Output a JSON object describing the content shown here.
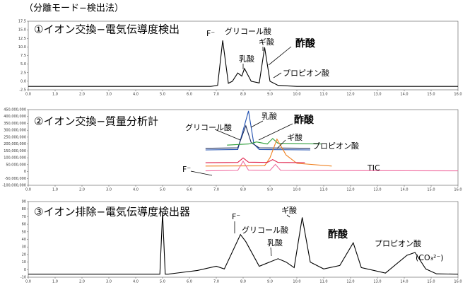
{
  "title": "（分離モード−検出法）",
  "chart_data": [
    {
      "type": "line",
      "title": "①イオン交換−電気伝導度検出",
      "xlim": [
        0,
        16
      ],
      "ylim": [
        -2.5,
        17.5
      ],
      "xticks": [
        {
          "value": 0,
          "label": "0.0"
        },
        {
          "value": 1,
          "label": "1.0"
        },
        {
          "value": 2,
          "label": "2.0"
        },
        {
          "value": 3,
          "label": "3.0"
        },
        {
          "value": 4,
          "label": "4.0"
        },
        {
          "value": 5,
          "label": "5.0"
        },
        {
          "value": 6,
          "label": "6.0"
        },
        {
          "value": 7,
          "label": "7.0"
        },
        {
          "value": 8,
          "label": "8.0"
        },
        {
          "value": 9,
          "label": "9.0"
        },
        {
          "value": 10,
          "label": "10.0"
        },
        {
          "value": 11,
          "label": "11.0"
        },
        {
          "value": 12,
          "label": "12.0"
        },
        {
          "value": 13,
          "label": "13.0"
        },
        {
          "value": 14,
          "label": "14.0"
        },
        {
          "value": 15,
          "label": "15.0"
        },
        {
          "value": 16,
          "label": "16.0"
        }
      ],
      "yticks": [
        -2.5,
        {
          "value": 0,
          "label": "0.0"
        },
        2.5,
        {
          "value": 5,
          "label": "5.0"
        },
        7.5,
        {
          "value": 10,
          "label": "10.0"
        },
        12.5,
        {
          "value": 15,
          "label": "15.0"
        },
        17.5
      ],
      "series": [
        {
          "color": "#000000",
          "x": [
            0,
            6.8,
            7.05,
            7.24,
            7.45,
            7.6,
            7.8,
            7.95,
            8.05,
            8.3,
            8.6,
            8.8,
            9.0,
            9.3,
            10,
            16
          ],
          "values": [
            -1.5,
            -1.5,
            -1.2,
            11.9,
            -0.6,
            0,
            2.4,
            1.5,
            3.7,
            0,
            -0.5,
            9.9,
            0,
            -1.2,
            -1.5,
            -1.5
          ]
        }
      ],
      "annotations": [
        "F⁻",
        "グリコール酸",
        "乳酸",
        "ギ酸",
        "酢酸",
        "プロピオン酸"
      ]
    },
    {
      "type": "line",
      "title": "②イオン交換−質量分析計",
      "xlim": [
        0,
        16
      ],
      "ylim": [
        -100000000,
        450000000
      ],
      "xticks": [
        {
          "value": 0,
          "label": "0.0"
        },
        {
          "value": 1,
          "label": "1.0"
        },
        {
          "value": 2,
          "label": "2.0"
        },
        {
          "value": 3,
          "label": "3.0"
        },
        {
          "value": 4,
          "label": "4.0"
        },
        {
          "value": 5,
          "label": "5.0"
        },
        {
          "value": 6,
          "label": "6.0"
        },
        {
          "value": 7,
          "label": "7.0"
        },
        {
          "value": 8,
          "label": "8.0"
        },
        {
          "value": 9,
          "label": "9.0"
        },
        {
          "value": 10,
          "label": "10.0"
        },
        {
          "value": 11,
          "label": "11.0"
        },
        {
          "value": 12,
          "label": "12.0"
        },
        {
          "value": 13,
          "label": "13.0"
        },
        {
          "value": 14,
          "label": "14.0"
        },
        {
          "value": 15,
          "label": "15.0"
        },
        {
          "value": 16,
          "label": "16.0"
        }
      ],
      "yticks": [
        {
          "value": -100000000,
          "label": "-100,000,000"
        },
        {
          "value": -50000000,
          "label": "-50,000,000"
        },
        0,
        {
          "value": 50000000,
          "label": "50,000,000"
        },
        {
          "value": 100000000,
          "label": "100,000,000"
        },
        {
          "value": 150000000,
          "label": "150,000,000"
        },
        {
          "value": 200000000,
          "label": "200,000,000"
        },
        {
          "value": 250000000,
          "label": "250,000,000"
        },
        {
          "value": 300000000,
          "label": "300,000,000"
        },
        {
          "value": 350000000,
          "label": "350,000,000"
        },
        {
          "value": 400000000,
          "label": "400,000,000"
        },
        {
          "value": 450000000,
          "label": "450,000,000"
        }
      ],
      "series": [
        {
          "name": "乳酸",
          "color": "#1f4fb0",
          "x": [
            6.6,
            7.8,
            8.0,
            8.2,
            8.4,
            8.6,
            10.5
          ],
          "values": [
            157000000,
            160000000,
            300000000,
            440000000,
            200000000,
            160000000,
            157000000
          ]
        },
        {
          "name": "グリコール酸",
          "color": "#1b2a5a",
          "x": [
            6.6,
            7.8,
            8.1,
            8.3,
            8.6,
            10.5
          ],
          "values": [
            169000000,
            172000000,
            333000000,
            210000000,
            172000000,
            169000000
          ]
        },
        {
          "name": "酢酸",
          "color": "#2e9e3a",
          "x": [
            7.4,
            8.2,
            8.5,
            8.9,
            9.1,
            9.3,
            10.9
          ],
          "values": [
            192000000,
            200000000,
            215000000,
            200000000,
            240000000,
            205000000,
            200000000
          ]
        },
        {
          "name": "ギ酸",
          "color": "#f08020",
          "x": [
            6.6,
            8.8,
            9.0,
            9.26,
            9.6,
            10.0,
            11.3
          ],
          "values": [
            40000000,
            42000000,
            100000000,
            235000000,
            120000000,
            60000000,
            40000000
          ]
        },
        {
          "name": "プロピオン酸",
          "color": "#e0204a",
          "x": [
            6.6,
            7.8,
            8.0,
            8.2,
            8.9,
            9.1,
            9.3,
            10.3
          ],
          "values": [
            64000000,
            66000000,
            99000000,
            68000000,
            66000000,
            87000000,
            66000000,
            64000000
          ]
        },
        {
          "name": "TIC",
          "color": "#f06ca0",
          "x": [
            6.6,
            7.8,
            8.0,
            8.2,
            9.0,
            9.2,
            9.4,
            16
          ],
          "values": [
            5000000,
            8000000,
            75000000,
            10000000,
            8000000,
            52000000,
            8000000,
            5000000
          ]
        }
      ],
      "annotations": [
        "F⁻"
      ]
    },
    {
      "type": "line",
      "title": "③イオン排除−電気伝導度検出器",
      "xlim": [
        0,
        16
      ],
      "ylim": [
        -10,
        90
      ],
      "xticks": [
        {
          "value": 0,
          "label": "0.0"
        },
        {
          "value": 1,
          "label": "1.0"
        },
        {
          "value": 2,
          "label": "2.0"
        },
        {
          "value": 3,
          "label": "3.0"
        },
        {
          "value": 4,
          "label": "4.0"
        },
        {
          "value": 5,
          "label": "5.0"
        },
        {
          "value": 6,
          "label": "6.0"
        },
        {
          "value": 7,
          "label": "7.0"
        },
        {
          "value": 8,
          "label": "8.0"
        },
        {
          "value": 9,
          "label": "9.0"
        },
        {
          "value": 10,
          "label": "10.0"
        },
        {
          "value": 11,
          "label": "11.0"
        },
        {
          "value": 12,
          "label": "12.0"
        },
        {
          "value": 13,
          "label": "13.0"
        },
        {
          "value": 14,
          "label": "14.0"
        },
        {
          "value": 15,
          "label": "15.0"
        },
        {
          "value": 16,
          "label": "16.0"
        }
      ],
      "yticks": [
        -10,
        0,
        10,
        20,
        30,
        40,
        50,
        60,
        70,
        80,
        90
      ],
      "series": [
        {
          "color": "#000000",
          "x": [
            0,
            4.8,
            4.9,
            5.0,
            5.1,
            5.2,
            6.3,
            7.0,
            7.3,
            7.9,
            8.1,
            8.6,
            9.3,
            9.6,
            9.9,
            10.2,
            10.5,
            11.0,
            11.6,
            12.1,
            12.4,
            13.3,
            14.1,
            14.4,
            14.8,
            15.2,
            16
          ],
          "values": [
            -6,
            -6,
            -6,
            75,
            -6,
            -6,
            -1,
            4.5,
            0.9,
            46.4,
            37,
            4.5,
            14.5,
            10,
            2.7,
            69,
            10,
            0.9,
            5.5,
            35.5,
            2.7,
            -4.5,
            19,
            22.7,
            0.9,
            -5.5,
            -6
          ]
        }
      ],
      "annotations": [
        "F⁻",
        "グリコール酸",
        "乳酸",
        "ギ酸",
        "酢酸",
        "プロピオン酸",
        "(CO₃²⁻)"
      ]
    }
  ]
}
